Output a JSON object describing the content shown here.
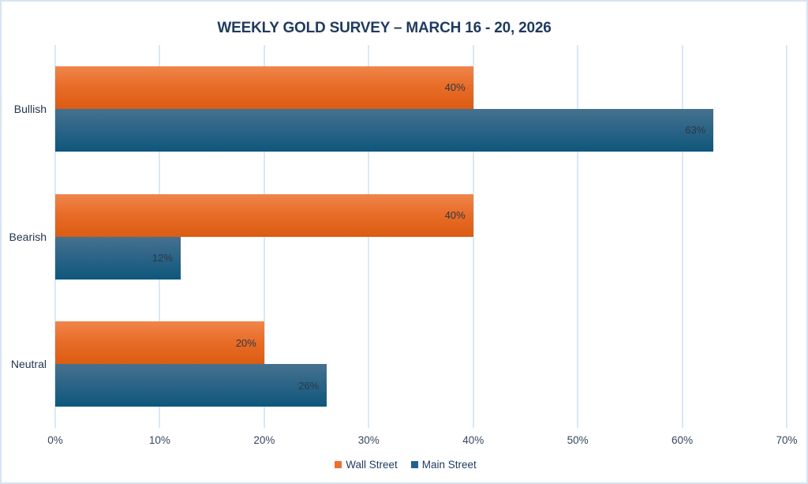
{
  "chart_data": {
    "type": "bar",
    "orientation": "horizontal",
    "title": "WEEKLY GOLD SURVEY – MARCH 16 - 20, 2026",
    "categories": [
      "Bullish",
      "Bearish",
      "Neutral"
    ],
    "series": [
      {
        "name": "Wall Street",
        "values": [
          40,
          40,
          20
        ],
        "value_labels": [
          "40%",
          "40%",
          "20%"
        ],
        "color_top": "#F0854B",
        "color_mid": "#E86C27",
        "color_bottom": "#DB5C12",
        "legend_color": "#EE6F2C"
      },
      {
        "name": "Main Street",
        "values": [
          63,
          12,
          26
        ],
        "value_labels": [
          "63%",
          "12%",
          "26%"
        ],
        "color_top": "#46718F",
        "color_mid": "#2C6486",
        "color_bottom": "#0E577B",
        "legend_color": "#1F618A"
      }
    ],
    "x_ticks": [
      "0%",
      "10%",
      "20%",
      "30%",
      "40%",
      "50%",
      "60%",
      "70%"
    ],
    "x_tick_values": [
      0,
      10,
      20,
      30,
      40,
      50,
      60,
      70
    ],
    "xlim": [
      0,
      70
    ],
    "grid": "vertical",
    "legend_position": "bottom"
  },
  "colors": {
    "background": "#FFFFFF",
    "frame_border": "#D5E4F3",
    "gridline": "#DAE8F6",
    "title_text": "#1F3A5F",
    "category_text": "#24364E",
    "tick_text": "#33475E",
    "value_label_text": "#2B3844",
    "legend_text": "#1F3A5F"
  }
}
